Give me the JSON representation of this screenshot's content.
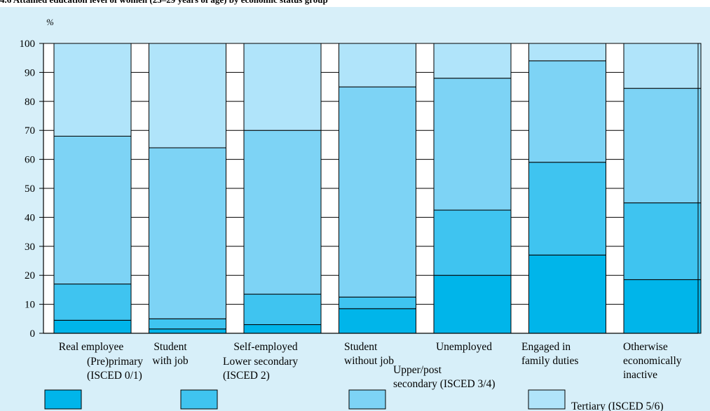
{
  "chart_data": {
    "type": "bar",
    "stacked": true,
    "title": "4.6  Attained education level of women (25–29 years of age) by economic status group",
    "ylabel": "%",
    "ylim": [
      0,
      100
    ],
    "yticks": [
      "0",
      "10",
      "20",
      "30",
      "40",
      "50",
      "60",
      "70",
      "80",
      "90",
      "100"
    ],
    "grid": true,
    "legend_position": "bottom",
    "categories": [
      [
        "Real employee"
      ],
      [
        "Student",
        "with job"
      ],
      [
        "Self-employed"
      ],
      [
        "Student",
        "without job"
      ],
      [
        "Unemployed"
      ],
      [
        "Engaged in",
        "family duties"
      ],
      [
        "Otherwise",
        "economically",
        "inactive"
      ]
    ],
    "series": [
      {
        "name": [
          "(Pre)primary",
          "(ISCED 0/1)"
        ],
        "color": "#00b5ea",
        "values": [
          4.5,
          1.5,
          3.0,
          8.5,
          20.0,
          27.0,
          18.5
        ]
      },
      {
        "name": [
          "Lower secondary",
          "(ISCED 2)"
        ],
        "color": "#3fc4f0",
        "values": [
          12.5,
          3.5,
          10.5,
          4.0,
          22.5,
          32.0,
          26.5
        ]
      },
      {
        "name": [
          "Upper/post",
          "secondary (ISCED 3/4)"
        ],
        "color": "#7dd3f5",
        "values": [
          51.0,
          59.0,
          56.5,
          72.5,
          45.5,
          35.0,
          39.5
        ]
      },
      {
        "name": [
          "Tertiary (ISCED 5/6)"
        ],
        "color": "#b0e4fa",
        "values": [
          32.0,
          36.0,
          30.0,
          15.0,
          12.0,
          6.0,
          15.5
        ]
      }
    ]
  }
}
